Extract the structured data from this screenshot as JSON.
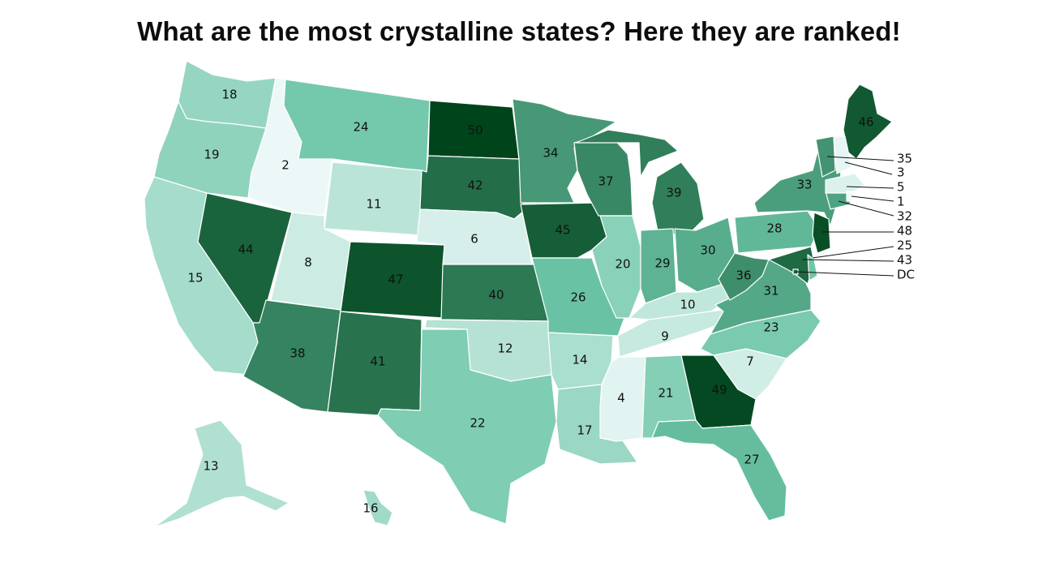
{
  "title": "What are the most crystalline states? Here they are ranked!",
  "color_scale": {
    "low": "#f1fafb",
    "mid": "#6cc5a7",
    "high": "#00441b",
    "min_rank": 1,
    "max_rank": 50
  },
  "states": [
    {
      "name": "WA",
      "rank": "18"
    },
    {
      "name": "OR",
      "rank": "19"
    },
    {
      "name": "CA",
      "rank": "15"
    },
    {
      "name": "ID",
      "rank": "2"
    },
    {
      "name": "NV",
      "rank": "44"
    },
    {
      "name": "MT",
      "rank": "24"
    },
    {
      "name": "WY",
      "rank": "11"
    },
    {
      "name": "UT",
      "rank": "8"
    },
    {
      "name": "AZ",
      "rank": "38"
    },
    {
      "name": "CO",
      "rank": "47"
    },
    {
      "name": "NM",
      "rank": "41"
    },
    {
      "name": "ND",
      "rank": "50"
    },
    {
      "name": "SD",
      "rank": "42"
    },
    {
      "name": "NE",
      "rank": "6"
    },
    {
      "name": "KS",
      "rank": "40"
    },
    {
      "name": "OK",
      "rank": "12"
    },
    {
      "name": "TX",
      "rank": "22"
    },
    {
      "name": "MN",
      "rank": "34"
    },
    {
      "name": "IA",
      "rank": "45"
    },
    {
      "name": "MO",
      "rank": "26"
    },
    {
      "name": "AR",
      "rank": "14"
    },
    {
      "name": "LA",
      "rank": "17"
    },
    {
      "name": "WI",
      "rank": "37"
    },
    {
      "name": "IL",
      "rank": "20"
    },
    {
      "name": "MI",
      "rank": "39"
    },
    {
      "name": "IN",
      "rank": "29"
    },
    {
      "name": "OH",
      "rank": "30"
    },
    {
      "name": "KY",
      "rank": "10"
    },
    {
      "name": "TN",
      "rank": "9"
    },
    {
      "name": "MS",
      "rank": "4"
    },
    {
      "name": "AL",
      "rank": "21"
    },
    {
      "name": "GA",
      "rank": "49"
    },
    {
      "name": "FL",
      "rank": "27"
    },
    {
      "name": "SC",
      "rank": "7"
    },
    {
      "name": "NC",
      "rank": "23"
    },
    {
      "name": "VA",
      "rank": "31"
    },
    {
      "name": "WV",
      "rank": "36"
    },
    {
      "name": "PA",
      "rank": "28"
    },
    {
      "name": "NY",
      "rank": "33"
    },
    {
      "name": "ME",
      "rank": "46"
    },
    {
      "name": "AK",
      "rank": "13"
    },
    {
      "name": "HI",
      "rank": "16"
    },
    {
      "name": "NJ",
      "rank": "48"
    },
    {
      "name": "MD",
      "rank": "43"
    },
    {
      "name": "DE",
      "rank": "25"
    },
    {
      "name": "CT",
      "rank": "32"
    },
    {
      "name": "VT",
      "rank": "35"
    },
    {
      "name": "NH",
      "rank": "3"
    },
    {
      "name": "MA",
      "rank": "5"
    },
    {
      "name": "RI",
      "rank": "1"
    },
    {
      "name": "DC",
      "rank": "DC"
    }
  ],
  "callouts": [
    "35",
    "3",
    "5",
    "1",
    "32",
    "48",
    "25",
    "43",
    "DC"
  ]
}
